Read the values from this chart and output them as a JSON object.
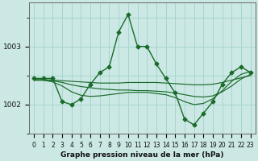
{
  "xlabel": "Graphe pression niveau de la mer (hPa)",
  "background_color": "#cbe8e4",
  "grid_color": "#a8d5d0",
  "line_color": "#1a6b2a",
  "x": [
    0,
    1,
    2,
    3,
    4,
    5,
    6,
    7,
    8,
    9,
    10,
    11,
    12,
    13,
    14,
    15,
    16,
    17,
    18,
    19,
    20,
    21,
    22,
    23
  ],
  "y_main": [
    1002.45,
    1002.45,
    1002.45,
    1002.05,
    1002.0,
    1002.1,
    1002.35,
    1002.55,
    1002.65,
    1003.25,
    1003.55,
    1003.0,
    1003.0,
    1002.7,
    1002.45,
    1002.2,
    1001.75,
    1001.65,
    1001.85,
    1002.05,
    1002.35,
    1002.55,
    1002.65,
    1002.55
  ],
  "y_smooth1": [
    1002.43,
    1002.43,
    1002.42,
    1002.41,
    1002.4,
    1002.39,
    1002.38,
    1002.37,
    1002.37,
    1002.37,
    1002.38,
    1002.38,
    1002.38,
    1002.38,
    1002.37,
    1002.36,
    1002.35,
    1002.34,
    1002.34,
    1002.35,
    1002.38,
    1002.42,
    1002.46,
    1002.5
  ],
  "y_smooth2": [
    1002.42,
    1002.42,
    1002.41,
    1002.38,
    1002.34,
    1002.31,
    1002.29,
    1002.27,
    1002.26,
    1002.25,
    1002.25,
    1002.24,
    1002.24,
    1002.23,
    1002.22,
    1002.2,
    1002.17,
    1002.14,
    1002.13,
    1002.15,
    1002.22,
    1002.32,
    1002.44,
    1002.52
  ],
  "y_smooth3": [
    1002.42,
    1002.42,
    1002.39,
    1002.32,
    1002.22,
    1002.16,
    1002.14,
    1002.15,
    1002.17,
    1002.19,
    1002.21,
    1002.21,
    1002.21,
    1002.19,
    1002.17,
    1002.12,
    1002.05,
    1002.0,
    1002.02,
    1002.1,
    1002.24,
    1002.4,
    1002.52,
    1002.57
  ],
  "ylim": [
    1001.55,
    1003.75
  ],
  "yticks": [
    1002,
    1003
  ],
  "markersize": 2.5,
  "linewidth": 1.0,
  "tick_fontsize": 5.5,
  "label_fontsize": 6.5
}
